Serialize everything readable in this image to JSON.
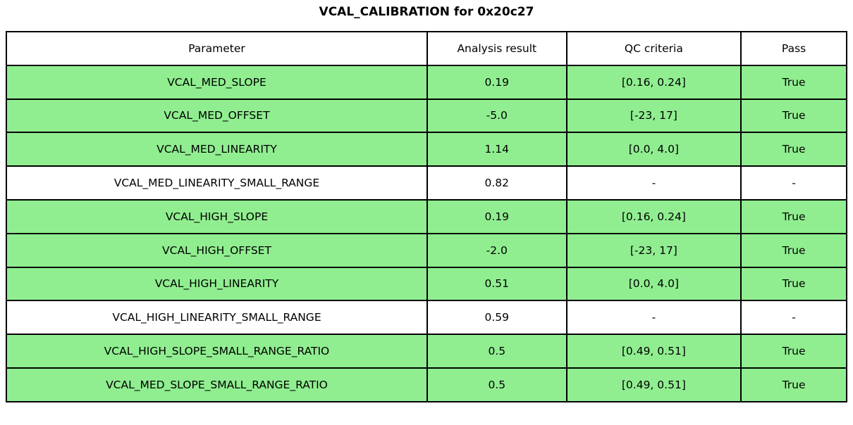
{
  "title": "VCAL_CALIBRATION for 0x20c27",
  "colors": {
    "pass_row_green": "#90EE90",
    "neutral_row_white": "#FFFFFF",
    "border_black": "#000000",
    "text_black": "#000000"
  },
  "chart_data": {
    "type": "table",
    "title": "VCAL_CALIBRATION for 0x20c27",
    "columns": [
      "Parameter",
      "Analysis result",
      "QC criteria",
      "Pass"
    ],
    "column_width_percents": [
      50.08,
      16.58,
      20.77,
      12.57
    ],
    "rows": [
      [
        "VCAL_MED_SLOPE",
        "0.19",
        "[0.16, 0.24]",
        "True"
      ],
      [
        "VCAL_MED_OFFSET",
        "-5.0",
        "[-23, 17]",
        "True"
      ],
      [
        "VCAL_MED_LINEARITY",
        "1.14",
        "[0.0, 4.0]",
        "True"
      ],
      [
        "VCAL_MED_LINEARITY_SMALL_RANGE",
        "0.82",
        "-",
        "-"
      ],
      [
        "VCAL_HIGH_SLOPE",
        "0.19",
        "[0.16, 0.24]",
        "True"
      ],
      [
        "VCAL_HIGH_OFFSET",
        "-2.0",
        "[-23, 17]",
        "True"
      ],
      [
        "VCAL_HIGH_LINEARITY",
        "0.51",
        "[0.0, 4.0]",
        "True"
      ],
      [
        "VCAL_HIGH_LINEARITY_SMALL_RANGE",
        "0.59",
        "-",
        "-"
      ],
      [
        "VCAL_HIGH_SLOPE_SMALL_RANGE_RATIO",
        "0.5",
        "[0.49, 0.51]",
        "True"
      ],
      [
        "VCAL_MED_SLOPE_SMALL_RANGE_RATIO",
        "0.5",
        "[0.49, 0.51]",
        "True"
      ]
    ],
    "row_highlighted": [
      true,
      true,
      true,
      false,
      true,
      true,
      true,
      false,
      true,
      true
    ],
    "legend_position": "none",
    "grid": "full-cell-borders"
  }
}
